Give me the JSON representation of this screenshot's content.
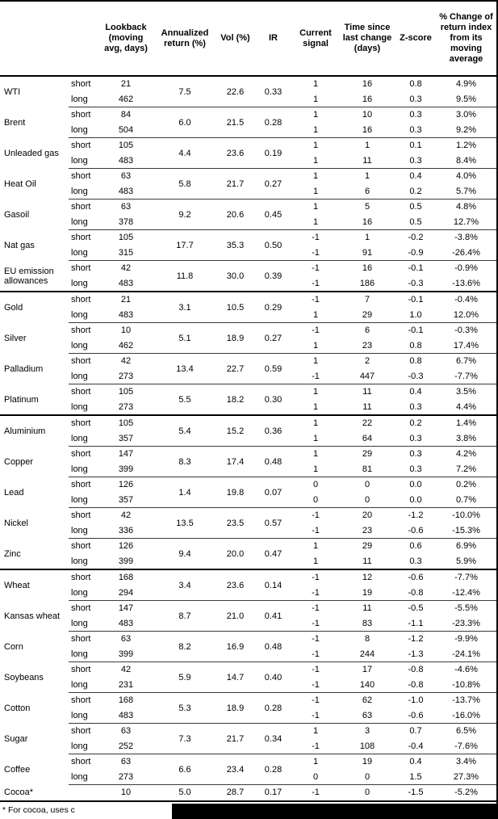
{
  "columns": [
    {
      "key": "lookback",
      "label": "Lookback\n(moving\navg, days)"
    },
    {
      "key": "annualized-return",
      "label": "Annualized\nreturn (%)"
    },
    {
      "key": "vol",
      "label": "Vol (%)"
    },
    {
      "key": "ir",
      "label": "IR"
    },
    {
      "key": "current-signal",
      "label": "Current\nsignal"
    },
    {
      "key": "time-since-last-change",
      "label": "Time since\nlast change\n(days)"
    },
    {
      "key": "z-score",
      "label": "Z-score"
    },
    {
      "key": "pct-change",
      "label": "% Change of\nreturn index\nfrom its\nmoving\naverage"
    }
  ],
  "sections": [
    {
      "key": "energy",
      "commodities": [
        {
          "name": "WTI",
          "annualized": "7.5",
          "vol": "22.6",
          "ir": "0.33",
          "rows": [
            {
              "pos": "short",
              "lookback": "21",
              "signal": "1",
              "time": "16",
              "z": "0.8",
              "pct": "4.9%"
            },
            {
              "pos": "long",
              "lookback": "462",
              "signal": "1",
              "time": "16",
              "z": "0.3",
              "pct": "9.5%"
            }
          ]
        },
        {
          "name": "Brent",
          "annualized": "6.0",
          "vol": "21.5",
          "ir": "0.28",
          "rows": [
            {
              "pos": "short",
              "lookback": "84",
              "signal": "1",
              "time": "10",
              "z": "0.3",
              "pct": "3.0%"
            },
            {
              "pos": "long",
              "lookback": "504",
              "signal": "1",
              "time": "16",
              "z": "0.3",
              "pct": "9.2%"
            }
          ]
        },
        {
          "name": "Unleaded gas",
          "annualized": "4.4",
          "vol": "23.6",
          "ir": "0.19",
          "rows": [
            {
              "pos": "short",
              "lookback": "105",
              "signal": "1",
              "time": "1",
              "z": "0.1",
              "pct": "1.2%"
            },
            {
              "pos": "long",
              "lookback": "483",
              "signal": "1",
              "time": "11",
              "z": "0.3",
              "pct": "8.4%"
            }
          ]
        },
        {
          "name": "Heat Oil",
          "annualized": "5.8",
          "vol": "21.7",
          "ir": "0.27",
          "rows": [
            {
              "pos": "short",
              "lookback": "63",
              "signal": "1",
              "time": "1",
              "z": "0.4",
              "pct": "4.0%"
            },
            {
              "pos": "long",
              "lookback": "483",
              "signal": "1",
              "time": "6",
              "z": "0.2",
              "pct": "5.7%"
            }
          ]
        },
        {
          "name": "Gasoil",
          "annualized": "9.2",
          "vol": "20.6",
          "ir": "0.45",
          "rows": [
            {
              "pos": "short",
              "lookback": "63",
              "signal": "1",
              "time": "5",
              "z": "0.5",
              "pct": "4.8%"
            },
            {
              "pos": "long",
              "lookback": "378",
              "signal": "1",
              "time": "16",
              "z": "0.5",
              "pct": "12.7%"
            }
          ]
        },
        {
          "name": "Nat gas",
          "annualized": "17.7",
          "vol": "35.3",
          "ir": "0.50",
          "rows": [
            {
              "pos": "short",
              "lookback": "105",
              "signal": "-1",
              "time": "1",
              "z": "-0.2",
              "pct": "-3.8%"
            },
            {
              "pos": "long",
              "lookback": "315",
              "signal": "-1",
              "time": "91",
              "z": "-0.9",
              "pct": "-26.4%"
            }
          ]
        },
        {
          "name": "EU emission allowances",
          "annualized": "11.8",
          "vol": "30.0",
          "ir": "0.39",
          "rows": [
            {
              "pos": "short",
              "lookback": "42",
              "signal": "-1",
              "time": "16",
              "z": "-0.1",
              "pct": "-0.9%"
            },
            {
              "pos": "long",
              "lookback": "483",
              "signal": "-1",
              "time": "186",
              "z": "-0.3",
              "pct": "-13.6%"
            }
          ]
        }
      ]
    },
    {
      "key": "precious-metals",
      "commodities": [
        {
          "name": "Gold",
          "annualized": "3.1",
          "vol": "10.5",
          "ir": "0.29",
          "rows": [
            {
              "pos": "short",
              "lookback": "21",
              "signal": "-1",
              "time": "7",
              "z": "-0.1",
              "pct": "-0.4%"
            },
            {
              "pos": "long",
              "lookback": "483",
              "signal": "1",
              "time": "29",
              "z": "1.0",
              "pct": "12.0%"
            }
          ]
        },
        {
          "name": "Silver",
          "annualized": "5.1",
          "vol": "18.9",
          "ir": "0.27",
          "rows": [
            {
              "pos": "short",
              "lookback": "10",
              "signal": "-1",
              "time": "6",
              "z": "-0.1",
              "pct": "-0.3%"
            },
            {
              "pos": "long",
              "lookback": "462",
              "signal": "1",
              "time": "23",
              "z": "0.8",
              "pct": "17.4%"
            }
          ]
        },
        {
          "name": "Palladium",
          "annualized": "13.4",
          "vol": "22.7",
          "ir": "0.59",
          "rows": [
            {
              "pos": "short",
              "lookback": "42",
              "signal": "1",
              "time": "2",
              "z": "0.8",
              "pct": "6.7%"
            },
            {
              "pos": "long",
              "lookback": "273",
              "signal": "-1",
              "time": "447",
              "z": "-0.3",
              "pct": "-7.7%"
            }
          ]
        },
        {
          "name": "Platinum",
          "annualized": "5.5",
          "vol": "18.2",
          "ir": "0.30",
          "rows": [
            {
              "pos": "short",
              "lookback": "105",
              "signal": "1",
              "time": "11",
              "z": "0.4",
              "pct": "3.5%"
            },
            {
              "pos": "long",
              "lookback": "273",
              "signal": "1",
              "time": "11",
              "z": "0.3",
              "pct": "4.4%"
            }
          ]
        }
      ]
    },
    {
      "key": "base-metals",
      "commodities": [
        {
          "name": "Aluminium",
          "annualized": "5.4",
          "vol": "15.2",
          "ir": "0.36",
          "rows": [
            {
              "pos": "short",
              "lookback": "105",
              "signal": "1",
              "time": "22",
              "z": "0.2",
              "pct": "1.4%"
            },
            {
              "pos": "long",
              "lookback": "357",
              "signal": "1",
              "time": "64",
              "z": "0.3",
              "pct": "3.8%"
            }
          ]
        },
        {
          "name": "Copper",
          "annualized": "8.3",
          "vol": "17.4",
          "ir": "0.48",
          "rows": [
            {
              "pos": "short",
              "lookback": "147",
              "signal": "1",
              "time": "29",
              "z": "0.3",
              "pct": "4.2%"
            },
            {
              "pos": "long",
              "lookback": "399",
              "signal": "1",
              "time": "81",
              "z": "0.3",
              "pct": "7.2%"
            }
          ]
        },
        {
          "name": "Lead",
          "annualized": "1.4",
          "vol": "19.8",
          "ir": "0.07",
          "rows": [
            {
              "pos": "short",
              "lookback": "126",
              "signal": "0",
              "time": "0",
              "z": "0.0",
              "pct": "0.2%"
            },
            {
              "pos": "long",
              "lookback": "357",
              "signal": "0",
              "time": "0",
              "z": "0.0",
              "pct": "0.7%"
            }
          ]
        },
        {
          "name": "Nickel",
          "annualized": "13.5",
          "vol": "23.5",
          "ir": "0.57",
          "rows": [
            {
              "pos": "short",
              "lookback": "42",
              "signal": "-1",
              "time": "20",
              "z": "-1.2",
              "pct": "-10.0%"
            },
            {
              "pos": "long",
              "lookback": "336",
              "signal": "-1",
              "time": "23",
              "z": "-0.6",
              "pct": "-15.3%"
            }
          ]
        },
        {
          "name": "Zinc",
          "annualized": "9.4",
          "vol": "20.0",
          "ir": "0.47",
          "rows": [
            {
              "pos": "short",
              "lookback": "126",
              "signal": "1",
              "time": "29",
              "z": "0.6",
              "pct": "6.9%"
            },
            {
              "pos": "long",
              "lookback": "399",
              "signal": "1",
              "time": "11",
              "z": "0.3",
              "pct": "5.9%"
            }
          ]
        }
      ]
    },
    {
      "key": "agriculture",
      "commodities": [
        {
          "name": "Wheat",
          "annualized": "3.4",
          "vol": "23.6",
          "ir": "0.14",
          "rows": [
            {
              "pos": "short",
              "lookback": "168",
              "signal": "-1",
              "time": "12",
              "z": "-0.6",
              "pct": "-7.7%"
            },
            {
              "pos": "long",
              "lookback": "294",
              "signal": "-1",
              "time": "19",
              "z": "-0.8",
              "pct": "-12.4%"
            }
          ]
        },
        {
          "name": "Kansas wheat",
          "annualized": "8.7",
          "vol": "21.0",
          "ir": "0.41",
          "rows": [
            {
              "pos": "short",
              "lookback": "147",
              "signal": "-1",
              "time": "11",
              "z": "-0.5",
              "pct": "-5.5%"
            },
            {
              "pos": "long",
              "lookback": "483",
              "signal": "-1",
              "time": "83",
              "z": "-1.1",
              "pct": "-23.3%"
            }
          ]
        },
        {
          "name": "Corn",
          "annualized": "8.2",
          "vol": "16.9",
          "ir": "0.48",
          "rows": [
            {
              "pos": "short",
              "lookback": "63",
              "signal": "-1",
              "time": "8",
              "z": "-1.2",
              "pct": "-9.9%"
            },
            {
              "pos": "long",
              "lookback": "399",
              "signal": "-1",
              "time": "244",
              "z": "-1.3",
              "pct": "-24.1%"
            }
          ]
        },
        {
          "name": "Soybeans",
          "annualized": "5.9",
          "vol": "14.7",
          "ir": "0.40",
          "rows": [
            {
              "pos": "short",
              "lookback": "42",
              "signal": "-1",
              "time": "17",
              "z": "-0.8",
              "pct": "-4.6%"
            },
            {
              "pos": "long",
              "lookback": "231",
              "signal": "-1",
              "time": "140",
              "z": "-0.8",
              "pct": "-10.8%"
            }
          ]
        },
        {
          "name": "Cotton",
          "annualized": "5.3",
          "vol": "18.9",
          "ir": "0.28",
          "rows": [
            {
              "pos": "short",
              "lookback": "168",
              "signal": "-1",
              "time": "62",
              "z": "-1.0",
              "pct": "-13.7%"
            },
            {
              "pos": "long",
              "lookback": "483",
              "signal": "-1",
              "time": "63",
              "z": "-0.6",
              "pct": "-16.0%"
            }
          ]
        },
        {
          "name": "Sugar",
          "annualized": "7.3",
          "vol": "21.7",
          "ir": "0.34",
          "rows": [
            {
              "pos": "short",
              "lookback": "63",
              "signal": "1",
              "time": "3",
              "z": "0.7",
              "pct": "6.5%"
            },
            {
              "pos": "long",
              "lookback": "252",
              "signal": "-1",
              "time": "108",
              "z": "-0.4",
              "pct": "-7.6%"
            }
          ]
        },
        {
          "name": "Coffee",
          "annualized": "6.6",
          "vol": "23.4",
          "ir": "0.28",
          "rows": [
            {
              "pos": "short",
              "lookback": "63",
              "signal": "1",
              "time": "19",
              "z": "0.4",
              "pct": "3.4%"
            },
            {
              "pos": "long",
              "lookback": "273",
              "signal": "0",
              "time": "0",
              "z": "1.5",
              "pct": "27.3%"
            }
          ]
        },
        {
          "name": "Cocoa*",
          "annualized": "5.0",
          "vol": "28.7",
          "ir": "0.17",
          "rows": [
            {
              "pos": "",
              "lookback": "10",
              "signal": "-1",
              "time": "0",
              "z": "-1.5",
              "pct": "-5.2%"
            }
          ]
        }
      ]
    }
  ],
  "footnote": "* For cocoa, uses c"
}
